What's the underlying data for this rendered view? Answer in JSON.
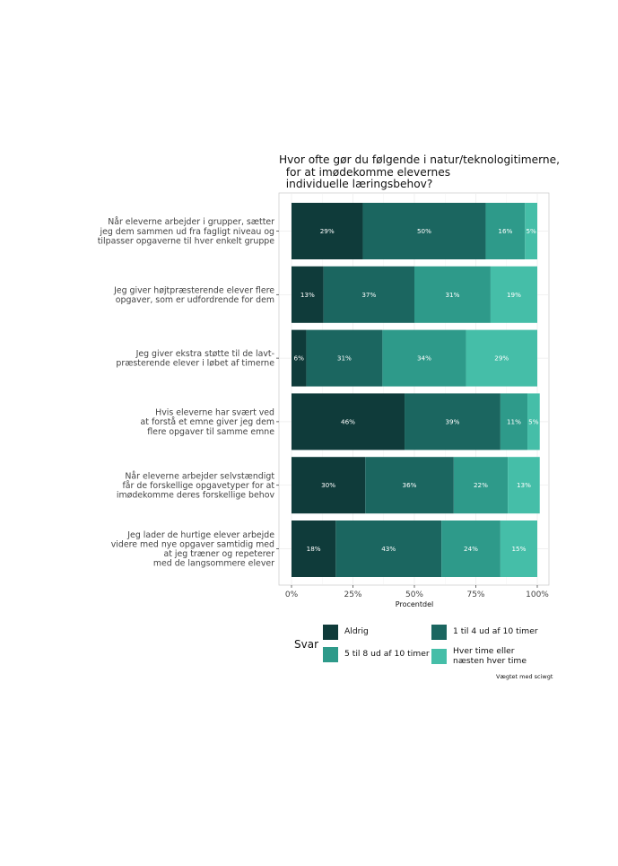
{
  "chart_data": {
    "type": "bar",
    "orientation": "horizontal",
    "stacked": true,
    "title_lines": [
      "Hvor ofte gør du følgende i natur/teknologitimerne,",
      "  for at imødekomme elevernes",
      "  individuelle læringsbehov?"
    ],
    "categories": [
      [
        "Når eleverne arbejder i grupper, sætter",
        "jeg dem sammen ud fra fagligt niveau og",
        "tilpasser opgaverne til hver enkelt gruppe"
      ],
      [
        "Jeg giver højtpræsterende elever flere",
        "opgaver, som er udfordrende for dem"
      ],
      [
        "Jeg giver ekstra støtte til de lavt-",
        "præsterende elever i løbet af timerne"
      ],
      [
        "Hvis eleverne har svært ved",
        "at forstå et emne giver jeg dem",
        "flere opgaver til samme emne"
      ],
      [
        "Når eleverne arbejder selvstændigt",
        "får de forskellige opgavetyper for at",
        "imødekomme deres forskellige behov"
      ],
      [
        "Jeg lader de hurtige elever arbejde",
        "videre med nye opgaver samtidig med",
        "at jeg træner og repeterer",
        "med de langsommere elever"
      ]
    ],
    "series": [
      {
        "name": "Aldrig",
        "color": "#0f3b3a",
        "values": [
          29,
          13,
          6,
          46,
          30,
          18
        ],
        "labels": [
          "29%",
          "13%",
          "6%",
          "46%",
          "30%",
          "18%"
        ]
      },
      {
        "name": "1 til 4 ud af 10 timer",
        "color": "#1b6660",
        "values": [
          50,
          37,
          31,
          39,
          36,
          43
        ],
        "labels": [
          "50%",
          "37%",
          "31%",
          "39%",
          "36%",
          "43%"
        ]
      },
      {
        "name": "5 til 8 ud af 10 timer",
        "color": "#2e9a8a",
        "values": [
          16,
          31,
          34,
          11,
          22,
          24
        ],
        "labels": [
          "16%",
          "31%",
          "34%",
          "11%",
          "22%",
          "24%"
        ]
      },
      {
        "name": "Hver time eller\nnæsten hver time",
        "color": "#45bea8",
        "values": [
          5,
          19,
          29,
          5,
          13,
          15
        ],
        "labels": [
          "5%",
          "19%",
          "29%",
          "5%",
          "13%",
          "15%"
        ]
      }
    ],
    "xlabel": "Procentdel",
    "xlim": [
      0,
      100
    ],
    "xticks": [
      0,
      25,
      50,
      75,
      100
    ],
    "xtick_labels": [
      "0%",
      "25%",
      "50%",
      "75%",
      "100%"
    ],
    "grid": true,
    "legend_title": "Svar",
    "legend_position": "bottom"
  },
  "caption": "Vægtet med sciwgt"
}
